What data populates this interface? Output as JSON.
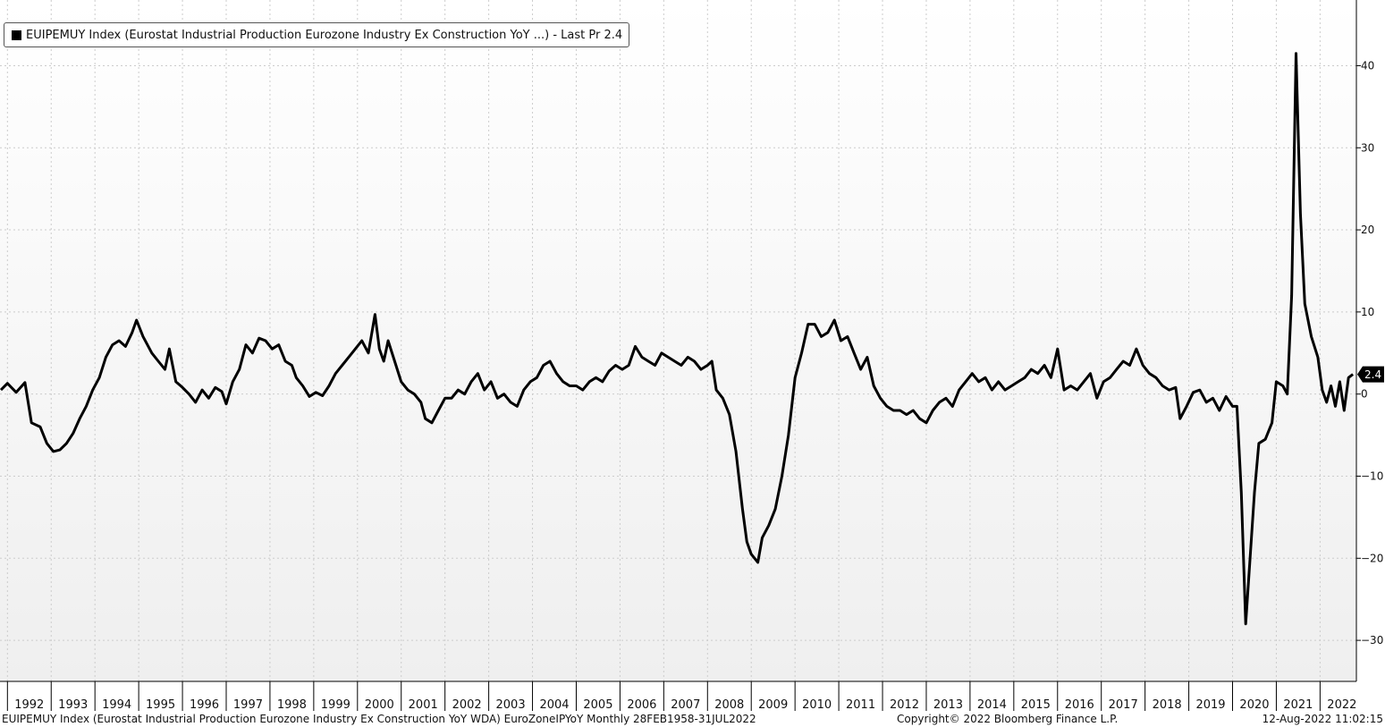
{
  "legend": {
    "label": "EUIPEMUY Index (Eurostat Industrial Production Eurozone Industry Ex Construction YoY ...) - Last Pr 2.4"
  },
  "footer": {
    "left": "EUIPEMUY Index (Eurostat Industrial Production Eurozone Industry Ex Construction YoY WDA) EuroZoneIPYoY  Monthly 28FEB1958-31JUL2022",
    "center": "Copyright© 2022 Bloomberg Finance L.P.",
    "right": "12-Aug-2022 11:02:15"
  },
  "last_value_label": "2.4",
  "colors": {
    "line": "#000000",
    "grid": "#cccccc",
    "tag": "#000000",
    "tag_text": "#ffffff"
  },
  "chart_data": {
    "type": "line",
    "x_label": "",
    "y_label": "",
    "x_tick_labels": [
      "1992",
      "1993",
      "1994",
      "1995",
      "1996",
      "1997",
      "1998",
      "1999",
      "2000",
      "2001",
      "2002",
      "2003",
      "2004",
      "2005",
      "2006",
      "2007",
      "2008",
      "2009",
      "2010",
      "2011",
      "2012",
      "2013",
      "2014",
      "2015",
      "2016",
      "2017",
      "2018",
      "2019",
      "2020",
      "2021",
      "2022"
    ],
    "y_ticks": [
      40,
      30,
      20,
      10,
      0,
      -10,
      -20,
      -30
    ],
    "ylim": [
      -35,
      48
    ],
    "xlim": [
      1991.83,
      2022.83
    ],
    "y_axis_side": "right",
    "legend_position": "top-left",
    "grid": true,
    "last_value": 2.4,
    "series": [
      {
        "points": [
          [
            1991.85,
            0.5
          ],
          [
            1992.0,
            1.3
          ],
          [
            1992.2,
            0.2
          ],
          [
            1992.4,
            1.4
          ],
          [
            1992.55,
            -3.5
          ],
          [
            1992.75,
            -4.0
          ],
          [
            1992.9,
            -6.0
          ],
          [
            1993.05,
            -7.0
          ],
          [
            1993.2,
            -6.8
          ],
          [
            1993.35,
            -6.0
          ],
          [
            1993.5,
            -4.8
          ],
          [
            1993.65,
            -3.0
          ],
          [
            1993.8,
            -1.5
          ],
          [
            1993.95,
            0.5
          ],
          [
            1994.1,
            2.0
          ],
          [
            1994.25,
            4.5
          ],
          [
            1994.4,
            6.0
          ],
          [
            1994.55,
            6.5
          ],
          [
            1994.7,
            5.8
          ],
          [
            1994.85,
            7.5
          ],
          [
            1994.95,
            9.0
          ],
          [
            1995.1,
            7.0
          ],
          [
            1995.3,
            5.0
          ],
          [
            1995.45,
            4.0
          ],
          [
            1995.6,
            3.0
          ],
          [
            1995.7,
            5.5
          ],
          [
            1995.85,
            1.5
          ],
          [
            1996.0,
            0.8
          ],
          [
            1996.15,
            0.0
          ],
          [
            1996.3,
            -1.0
          ],
          [
            1996.45,
            0.5
          ],
          [
            1996.6,
            -0.5
          ],
          [
            1996.75,
            0.8
          ],
          [
            1996.9,
            0.3
          ],
          [
            1997.0,
            -1.2
          ],
          [
            1997.15,
            1.5
          ],
          [
            1997.3,
            3.0
          ],
          [
            1997.45,
            6.0
          ],
          [
            1997.6,
            5.0
          ],
          [
            1997.75,
            6.8
          ],
          [
            1997.9,
            6.5
          ],
          [
            1998.05,
            5.5
          ],
          [
            1998.2,
            6.0
          ],
          [
            1998.35,
            4.0
          ],
          [
            1998.5,
            3.5
          ],
          [
            1998.6,
            2.0
          ],
          [
            1998.75,
            1.0
          ],
          [
            1998.9,
            -0.3
          ],
          [
            1999.05,
            0.2
          ],
          [
            1999.2,
            -0.2
          ],
          [
            1999.35,
            1.0
          ],
          [
            1999.5,
            2.5
          ],
          [
            1999.65,
            3.5
          ],
          [
            1999.8,
            4.5
          ],
          [
            1999.95,
            5.5
          ],
          [
            2000.1,
            6.5
          ],
          [
            2000.25,
            5.0
          ],
          [
            2000.4,
            9.7
          ],
          [
            2000.5,
            5.5
          ],
          [
            2000.6,
            4.0
          ],
          [
            2000.7,
            6.5
          ],
          [
            2000.85,
            4.0
          ],
          [
            2001.0,
            1.5
          ],
          [
            2001.15,
            0.5
          ],
          [
            2001.3,
            0.0
          ],
          [
            2001.45,
            -1.0
          ],
          [
            2001.55,
            -3.0
          ],
          [
            2001.7,
            -3.5
          ],
          [
            2001.85,
            -2.0
          ],
          [
            2002.0,
            -0.5
          ],
          [
            2002.15,
            -0.5
          ],
          [
            2002.3,
            0.5
          ],
          [
            2002.45,
            0.0
          ],
          [
            2002.6,
            1.5
          ],
          [
            2002.75,
            2.5
          ],
          [
            2002.9,
            0.5
          ],
          [
            2003.05,
            1.5
          ],
          [
            2003.2,
            -0.5
          ],
          [
            2003.35,
            0.0
          ],
          [
            2003.5,
            -1.0
          ],
          [
            2003.65,
            -1.5
          ],
          [
            2003.8,
            0.5
          ],
          [
            2003.95,
            1.5
          ],
          [
            2004.1,
            2.0
          ],
          [
            2004.25,
            3.5
          ],
          [
            2004.4,
            4.0
          ],
          [
            2004.55,
            2.5
          ],
          [
            2004.7,
            1.5
          ],
          [
            2004.85,
            1.0
          ],
          [
            2005.0,
            1.0
          ],
          [
            2005.15,
            0.5
          ],
          [
            2005.3,
            1.5
          ],
          [
            2005.45,
            2.0
          ],
          [
            2005.6,
            1.5
          ],
          [
            2005.75,
            2.8
          ],
          [
            2005.9,
            3.5
          ],
          [
            2006.05,
            3.0
          ],
          [
            2006.2,
            3.5
          ],
          [
            2006.35,
            5.8
          ],
          [
            2006.5,
            4.5
          ],
          [
            2006.65,
            4.0
          ],
          [
            2006.8,
            3.5
          ],
          [
            2006.95,
            5.0
          ],
          [
            2007.1,
            4.5
          ],
          [
            2007.25,
            4.0
          ],
          [
            2007.4,
            3.5
          ],
          [
            2007.55,
            4.5
          ],
          [
            2007.7,
            4.0
          ],
          [
            2007.85,
            3.0
          ],
          [
            2008.0,
            3.5
          ],
          [
            2008.1,
            4.0
          ],
          [
            2008.2,
            0.5
          ],
          [
            2008.35,
            -0.5
          ],
          [
            2008.5,
            -2.5
          ],
          [
            2008.65,
            -7.0
          ],
          [
            2008.8,
            -14.0
          ],
          [
            2008.9,
            -18.0
          ],
          [
            2009.0,
            -19.5
          ],
          [
            2009.15,
            -20.5
          ],
          [
            2009.25,
            -17.5
          ],
          [
            2009.4,
            -16.0
          ],
          [
            2009.55,
            -14.0
          ],
          [
            2009.7,
            -10.0
          ],
          [
            2009.85,
            -5.0
          ],
          [
            2010.0,
            2.0
          ],
          [
            2010.15,
            5.0
          ],
          [
            2010.3,
            8.5
          ],
          [
            2010.45,
            8.5
          ],
          [
            2010.6,
            7.0
          ],
          [
            2010.75,
            7.5
          ],
          [
            2010.9,
            9.0
          ],
          [
            2011.05,
            6.5
          ],
          [
            2011.2,
            7.0
          ],
          [
            2011.35,
            5.0
          ],
          [
            2011.5,
            3.0
          ],
          [
            2011.65,
            4.5
          ],
          [
            2011.8,
            1.0
          ],
          [
            2011.95,
            -0.5
          ],
          [
            2012.1,
            -1.5
          ],
          [
            2012.25,
            -2.0
          ],
          [
            2012.4,
            -2.0
          ],
          [
            2012.55,
            -2.5
          ],
          [
            2012.7,
            -2.0
          ],
          [
            2012.85,
            -3.0
          ],
          [
            2013.0,
            -3.5
          ],
          [
            2013.15,
            -2.0
          ],
          [
            2013.3,
            -1.0
          ],
          [
            2013.45,
            -0.5
          ],
          [
            2013.6,
            -1.5
          ],
          [
            2013.75,
            0.5
          ],
          [
            2013.9,
            1.5
          ],
          [
            2014.05,
            2.5
          ],
          [
            2014.2,
            1.5
          ],
          [
            2014.35,
            2.0
          ],
          [
            2014.5,
            0.5
          ],
          [
            2014.65,
            1.5
          ],
          [
            2014.8,
            0.5
          ],
          [
            2014.95,
            1.0
          ],
          [
            2015.1,
            1.5
          ],
          [
            2015.25,
            2.0
          ],
          [
            2015.4,
            3.0
          ],
          [
            2015.55,
            2.5
          ],
          [
            2015.7,
            3.5
          ],
          [
            2015.85,
            2.0
          ],
          [
            2016.0,
            5.5
          ],
          [
            2016.15,
            0.5
          ],
          [
            2016.3,
            1.0
          ],
          [
            2016.45,
            0.5
          ],
          [
            2016.6,
            1.5
          ],
          [
            2016.75,
            2.5
          ],
          [
            2016.9,
            -0.5
          ],
          [
            2017.05,
            1.5
          ],
          [
            2017.2,
            2.0
          ],
          [
            2017.35,
            3.0
          ],
          [
            2017.5,
            4.0
          ],
          [
            2017.65,
            3.5
          ],
          [
            2017.8,
            5.5
          ],
          [
            2017.95,
            3.5
          ],
          [
            2018.1,
            2.5
          ],
          [
            2018.25,
            2.0
          ],
          [
            2018.4,
            1.0
          ],
          [
            2018.55,
            0.5
          ],
          [
            2018.7,
            0.8
          ],
          [
            2018.8,
            -3.0
          ],
          [
            2018.95,
            -1.5
          ],
          [
            2019.1,
            0.2
          ],
          [
            2019.25,
            0.5
          ],
          [
            2019.4,
            -1.0
          ],
          [
            2019.55,
            -0.5
          ],
          [
            2019.7,
            -2.0
          ],
          [
            2019.85,
            -0.3
          ],
          [
            2020.0,
            -1.5
          ],
          [
            2020.1,
            -1.5
          ],
          [
            2020.2,
            -12.0
          ],
          [
            2020.3,
            -28.0
          ],
          [
            2020.4,
            -20.0
          ],
          [
            2020.5,
            -12.0
          ],
          [
            2020.6,
            -6.0
          ],
          [
            2020.75,
            -5.5
          ],
          [
            2020.9,
            -3.5
          ],
          [
            2021.0,
            1.5
          ],
          [
            2021.15,
            1.0
          ],
          [
            2021.25,
            0.0
          ],
          [
            2021.35,
            12.0
          ],
          [
            2021.45,
            41.5
          ],
          [
            2021.55,
            22.0
          ],
          [
            2021.65,
            11.0
          ],
          [
            2021.8,
            7.0
          ],
          [
            2021.95,
            4.5
          ],
          [
            2022.05,
            0.5
          ],
          [
            2022.15,
            -1.0
          ],
          [
            2022.25,
            1.0
          ],
          [
            2022.35,
            -1.5
          ],
          [
            2022.45,
            1.5
          ],
          [
            2022.55,
            -2.0
          ],
          [
            2022.65,
            2.0
          ],
          [
            2022.75,
            2.4
          ]
        ]
      }
    ]
  }
}
